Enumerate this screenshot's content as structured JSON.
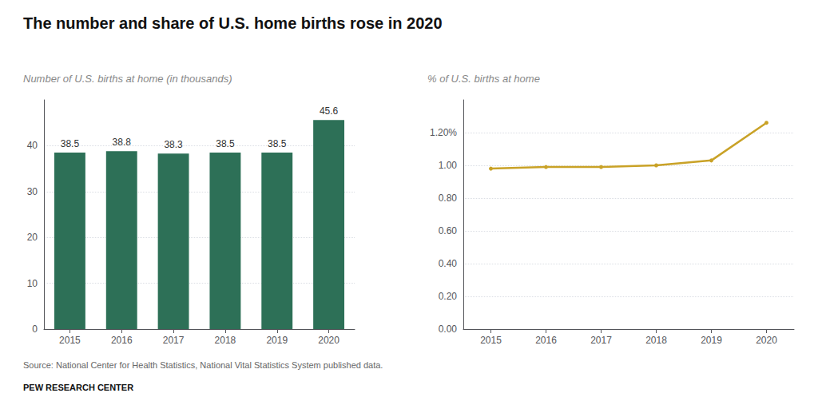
{
  "chart_data": [
    {
      "type": "bar",
      "title": "The number and share of U.S. home births rose in 2020",
      "subtitle": "Number of U.S. births at home (in thousands)",
      "annotations": [
        "Source: National Center for Health Statistics, National Vital Statistics System published data.",
        "PEW RESEARCH CENTER"
      ],
      "categories": [
        "2015",
        "2016",
        "2017",
        "2018",
        "2019",
        "2020"
      ],
      "values": [
        38.5,
        38.8,
        38.3,
        38.5,
        38.5,
        45.6
      ],
      "color": "#2d7057",
      "ylim": [
        0,
        50
      ],
      "yticks": [
        0,
        10,
        20,
        30,
        40
      ],
      "grid": true,
      "data_labels": true
    },
    {
      "type": "line",
      "subtitle": "% of U.S. births at home",
      "categories": [
        "2015",
        "2016",
        "2017",
        "2018",
        "2019",
        "2020"
      ],
      "values": [
        0.98,
        0.99,
        0.99,
        1.0,
        1.03,
        1.26
      ],
      "color": "#c9a227",
      "ylim": [
        0.0,
        1.4
      ],
      "yticks": [
        {
          "value": 0.0,
          "label": "0.00"
        },
        {
          "value": 0.2,
          "label": "0.20"
        },
        {
          "value": 0.4,
          "label": "0.40"
        },
        {
          "value": 0.6,
          "label": "0.60"
        },
        {
          "value": 0.8,
          "label": "0.80"
        },
        {
          "value": 1.0,
          "label": "1.00"
        },
        {
          "value": 1.2,
          "label": "1.20%"
        }
      ],
      "grid": true
    }
  ]
}
